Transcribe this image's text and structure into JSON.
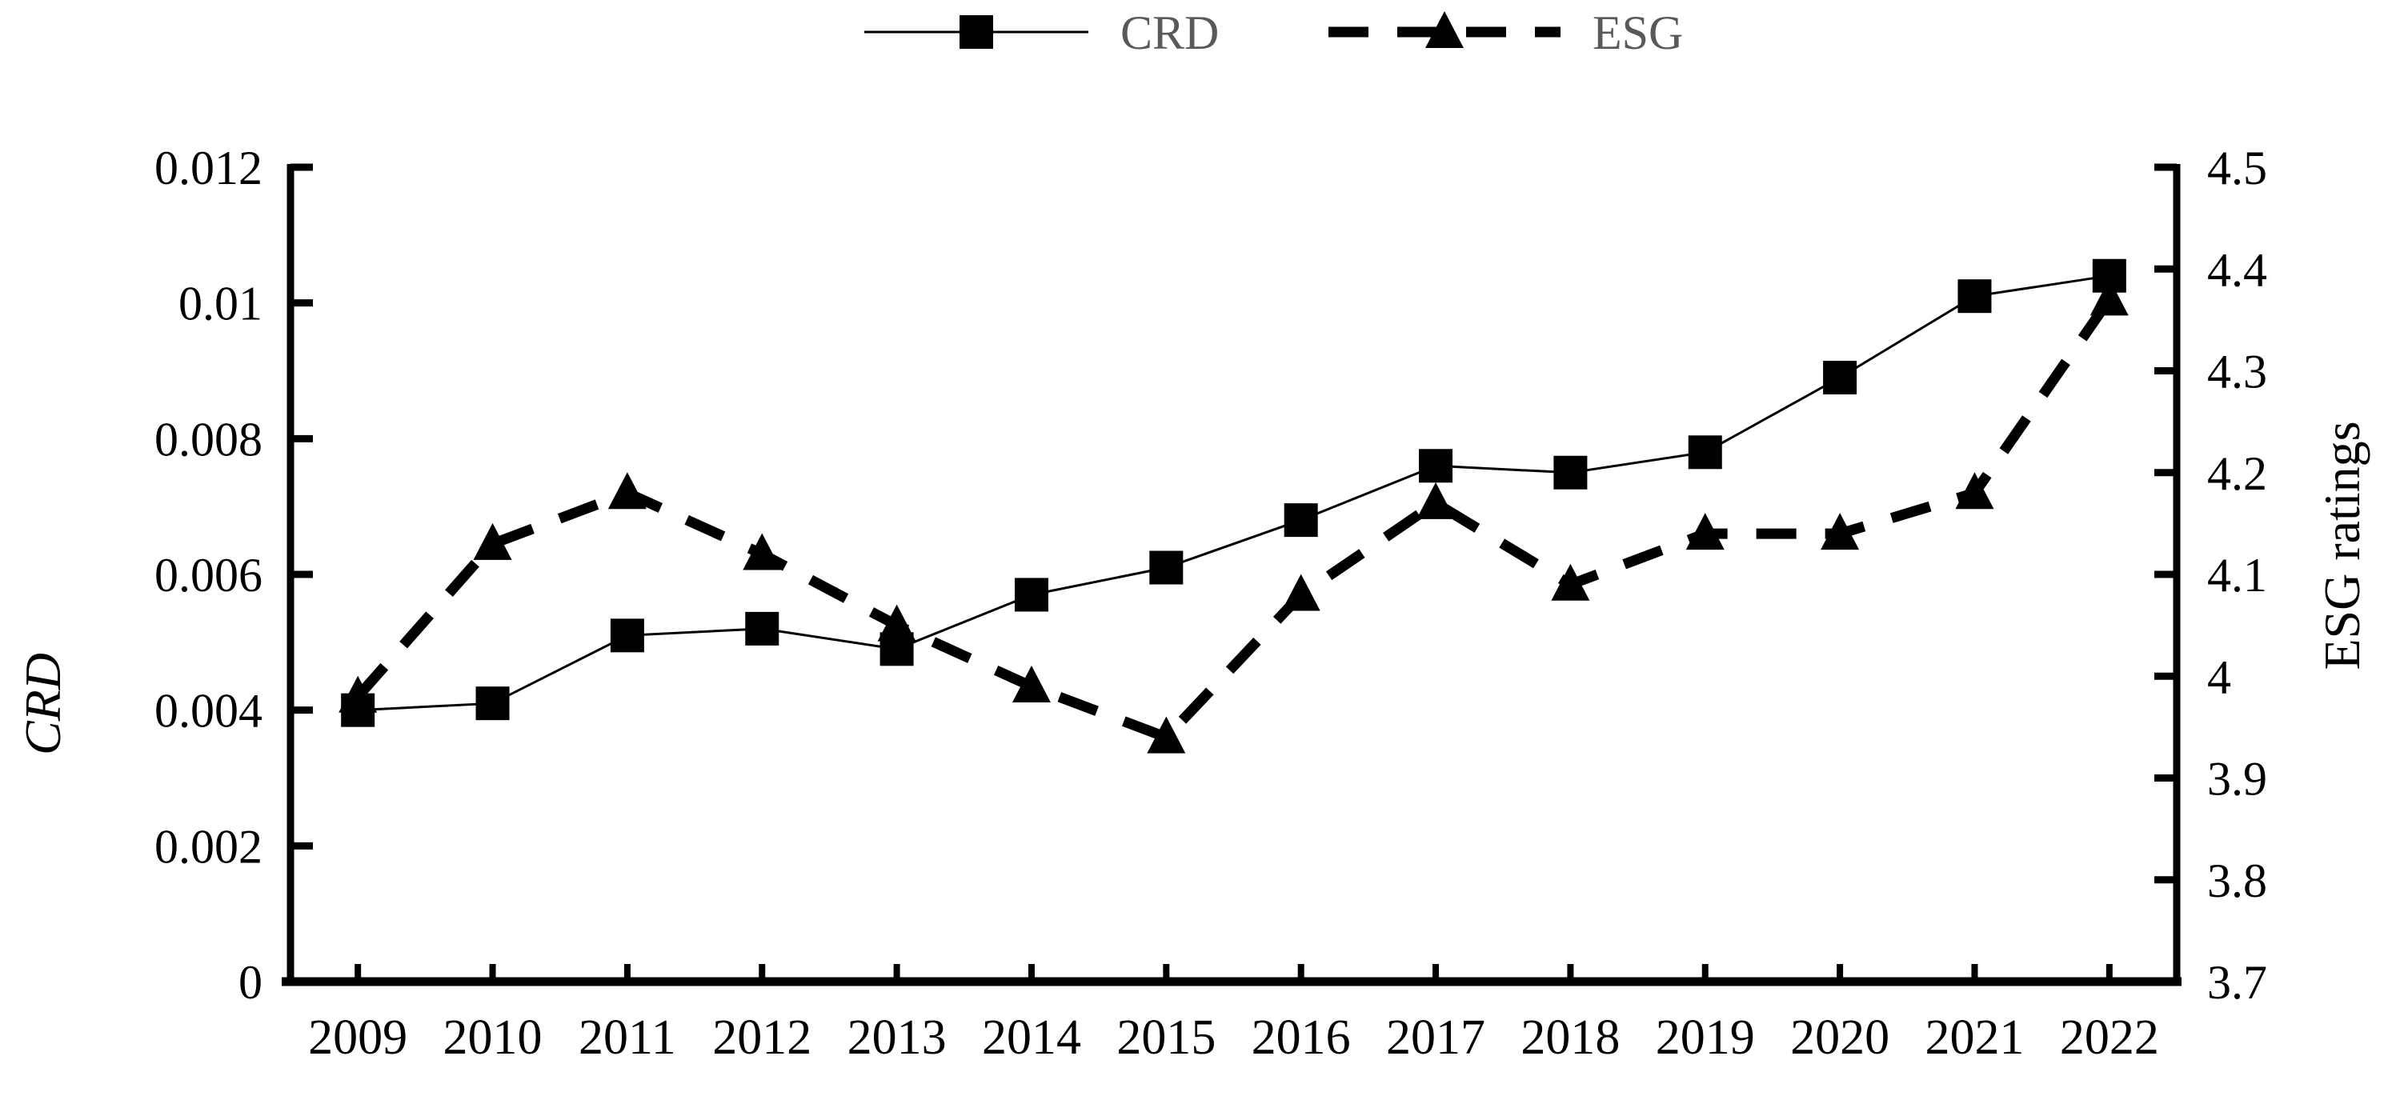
{
  "chart_data": {
    "type": "line",
    "title": "",
    "categories": [
      "2009",
      "2010",
      "2011",
      "2012",
      "2013",
      "2014",
      "2015",
      "2016",
      "2017",
      "2018",
      "2019",
      "2020",
      "2021",
      "2022"
    ],
    "series": [
      {
        "name": "CRD",
        "axis": "left",
        "marker": "square",
        "line": "solid",
        "values": [
          0.004,
          0.0041,
          0.0051,
          0.0052,
          0.0049,
          0.0057,
          0.0061,
          0.0068,
          0.0076,
          0.0075,
          0.0078,
          0.0089,
          0.0101,
          0.0104
        ]
      },
      {
        "name": "ESG",
        "axis": "right",
        "marker": "triangle",
        "line": "dashed",
        "values": [
          3.98,
          4.13,
          4.18,
          4.12,
          4.05,
          3.99,
          3.94,
          4.08,
          4.17,
          4.09,
          4.14,
          4.14,
          4.18,
          4.37
        ]
      }
    ],
    "left_axis": {
      "label": "CRD",
      "min": 0,
      "max": 0.012,
      "tick_values": [
        0.012,
        0.01,
        0.008,
        0.006,
        0.004,
        0.002,
        0
      ],
      "tick_labels": [
        "0.012",
        "0.01",
        "0.008",
        "0.006",
        "0.004",
        "0.002",
        "0"
      ]
    },
    "right_axis": {
      "label": "ESG ratings",
      "min": 3.7,
      "max": 4.5,
      "tick_values": [
        4.5,
        4.4,
        4.3,
        4.2,
        4.1,
        4.0,
        3.9,
        3.8,
        3.7
      ],
      "tick_labels": [
        "4.5",
        "4.4",
        "4.3",
        "4.2",
        "4.1",
        "4",
        "3.9",
        "3.8",
        "3.7"
      ]
    },
    "legend": {
      "position": "top-center",
      "entries": [
        {
          "label": "CRD",
          "marker": "square",
          "line": "solid"
        },
        {
          "label": "ESG",
          "marker": "triangle",
          "line": "dashed"
        }
      ]
    },
    "grid": false,
    "colors": {
      "series": "#000000",
      "axis": "#000000",
      "tick_text": "#000000",
      "legend_text": "#595959",
      "background": "#ffffff"
    }
  }
}
